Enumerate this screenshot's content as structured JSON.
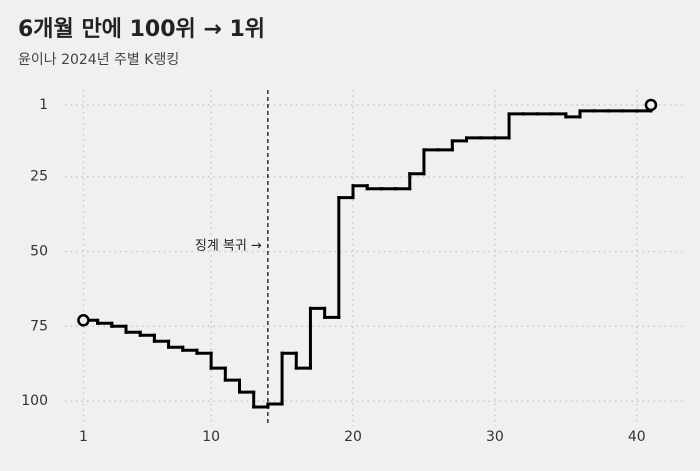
{
  "chart_data": {
    "type": "step",
    "title": "6개월 만에 100위 → 1위",
    "subtitle": "윤이나 2024년 주별 K랭킹",
    "x": [
      1,
      2,
      3,
      4,
      5,
      6,
      7,
      8,
      9,
      10,
      11,
      12,
      13,
      14,
      15,
      16,
      17,
      18,
      19,
      20,
      21,
      22,
      23,
      24,
      25,
      26,
      27,
      28,
      29,
      30,
      31,
      32,
      33,
      34,
      35,
      36,
      37,
      38,
      39,
      40,
      41
    ],
    "values": [
      73,
      74,
      75,
      77,
      78,
      80,
      82,
      83,
      84,
      89,
      93,
      97,
      102,
      101,
      84,
      89,
      69,
      72,
      32,
      28,
      29,
      29,
      29,
      24,
      16,
      16,
      13,
      12,
      12,
      12,
      4,
      4,
      4,
      4,
      5,
      3,
      3,
      3,
      3,
      3,
      1
    ],
    "color": "#000000",
    "xlim": [
      -0.3,
      43.4
    ],
    "xticks": [
      1,
      10,
      20,
      30,
      40
    ],
    "ylim": [
      -4,
      107
    ],
    "yticks": [
      1,
      25,
      50,
      75,
      100
    ],
    "y_inverted": true,
    "grid": true,
    "endpoint_markers": true,
    "annotations": [
      {
        "x": 14,
        "text": "징계 복귀 →"
      }
    ]
  }
}
